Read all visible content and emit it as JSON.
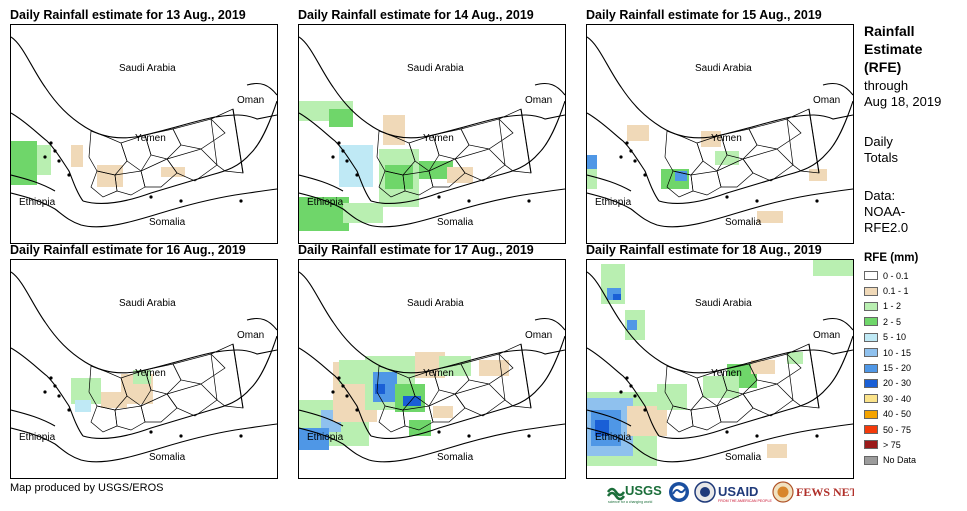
{
  "panels": [
    {
      "title": "Daily Rainfall estimate for 13 Aug., 2019"
    },
    {
      "title": "Daily Rainfall estimate for 14 Aug., 2019"
    },
    {
      "title": "Daily Rainfall estimate for 15 Aug., 2019"
    },
    {
      "title": "Daily Rainfall estimate for 16 Aug., 2019"
    },
    {
      "title": "Daily Rainfall estimate for 17 Aug., 2019"
    },
    {
      "title": "Daily Rainfall estimate for 18 Aug., 2019"
    }
  ],
  "map_labels": {
    "saudi": "Saudi Arabia",
    "oman": "Oman",
    "yemen": "Yemen",
    "ethiopia": "Ethiopia",
    "somalia": "Somalia"
  },
  "side": {
    "title_lines": [
      "Rainfall",
      "Estimate",
      "(RFE)"
    ],
    "subtitle_lines": [
      "through",
      "Aug 18, 2019"
    ],
    "daily_lines": [
      "Daily",
      "Totals"
    ],
    "data_lines": [
      "Data:",
      "NOAA-",
      "RFE2.0"
    ]
  },
  "legend": {
    "title": "RFE (mm)",
    "items": [
      {
        "label": "0 - 0.1",
        "color": "#ffffff"
      },
      {
        "label": "0.1 - 1",
        "color": "#f0d9b8"
      },
      {
        "label": "1 - 2",
        "color": "#b9efb1"
      },
      {
        "label": "2 - 5",
        "color": "#6fd66a"
      },
      {
        "label": "5 - 10",
        "color": "#bfe9f5"
      },
      {
        "label": "10 - 15",
        "color": "#8fc1ee"
      },
      {
        "label": "15 - 20",
        "color": "#4f97e6"
      },
      {
        "label": "20 - 30",
        "color": "#1a5fd6"
      },
      {
        "label": "30 - 40",
        "color": "#fbe38a"
      },
      {
        "label": "40 - 50",
        "color": "#f4a300"
      },
      {
        "label": "50 - 75",
        "color": "#f43a0a"
      },
      {
        "label": "> 75",
        "color": "#9b1b1b"
      },
      {
        "label": "No Data",
        "color": "#9c9c9c"
      }
    ]
  },
  "credit": "Map produced by USGS/EROS",
  "logos": {
    "usgs": "USGS",
    "usgs_tagline": "science for a changing world",
    "usaid": "USAID",
    "usaid_tagline": "FROM THE AMERICAN PEOPLE",
    "fews": "FEWS NET"
  }
}
